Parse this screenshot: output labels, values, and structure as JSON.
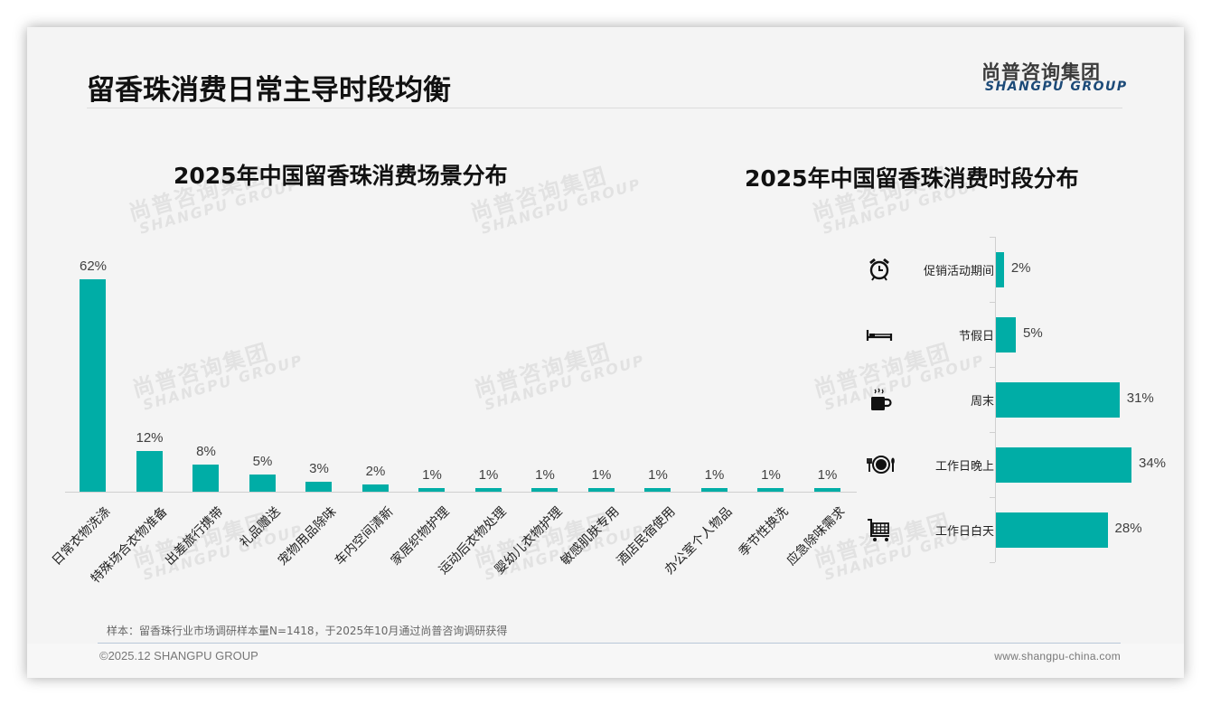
{
  "header": {
    "title": "留香珠消费日常主导时段均衡",
    "logo_cn": "尚普咨询集团",
    "logo_en": "SHANGPU GROUP"
  },
  "watermark": {
    "cn": "尚普咨询集团",
    "en": "SHANGPU GROUP"
  },
  "colors": {
    "bar": "#00ada6",
    "logo_en": "#1c4a78",
    "background": "#f4f4f4"
  },
  "chart_data": [
    {
      "type": "bar",
      "title": "2025年中国留香珠消费场景分布",
      "categories": [
        "日常衣物洗涤",
        "特殊场合衣物准备",
        "出差旅行携带",
        "礼品赠送",
        "宠物用品除味",
        "车内空间清新",
        "家居织物护理",
        "运动后衣物处理",
        "婴幼儿衣物护理",
        "敏感肌肤专用",
        "酒店民宿使用",
        "办公室个人物品",
        "季节性换洗",
        "应急除味需求"
      ],
      "values": [
        62,
        12,
        8,
        5,
        3,
        2,
        1,
        1,
        1,
        1,
        1,
        1,
        1,
        1
      ],
      "labels": [
        "62%",
        "12%",
        "8%",
        "5%",
        "3%",
        "2%",
        "1%",
        "1%",
        "1%",
        "1%",
        "1%",
        "1%",
        "1%",
        "1%"
      ],
      "xlabel": "",
      "ylabel": "",
      "unit": "%",
      "grid": false,
      "legend": "none",
      "orientation": "vertical",
      "label_rotation": -45
    },
    {
      "type": "bar",
      "title": "2025年中国留香珠消费时段分布",
      "categories": [
        "促销活动期间",
        "节假日",
        "周末",
        "工作日晚上",
        "工作日白天"
      ],
      "values": [
        2,
        5,
        31,
        34,
        28
      ],
      "labels": [
        "2%",
        "5%",
        "31%",
        "34%",
        "28%"
      ],
      "icons": [
        "alarm-clock-icon",
        "bed-icon",
        "hot-coffee-icon",
        "dining-plate-icon",
        "shopping-cart-icon"
      ],
      "xlabel": "",
      "ylabel": "",
      "unit": "%",
      "grid": false,
      "legend": "none",
      "orientation": "horizontal"
    }
  ],
  "footer": {
    "note": "样本：留香珠行业市场调研样本量N=1418，于2025年10月通过尚普咨询调研获得",
    "copyright": "©2025.12 SHANGPU GROUP",
    "url": "www.shangpu-china.com"
  }
}
